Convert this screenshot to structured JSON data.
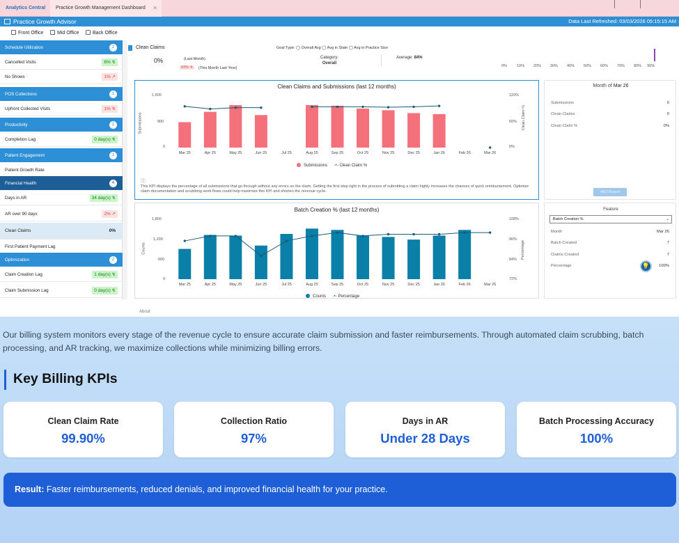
{
  "tabs": [
    {
      "label": "Analytics Central"
    },
    {
      "label": "Practice Growth Management Dashboard"
    }
  ],
  "title_bar": {
    "title": "Practice Growth Advisor",
    "refreshed": "Data Last Refreshed: 03/03/2026 05:15:15 AM"
  },
  "filters": [
    "Front Office",
    "Mid Office",
    "Back Office"
  ],
  "sidebar": {
    "sections": [
      {
        "header": "Schedule Utilization",
        "badge": "2"
      },
      {
        "header": "POS Collections",
        "badge": "1"
      },
      {
        "header": "Productivity",
        "badge": "1"
      },
      {
        "header": "Patient Engagement",
        "badge": "1"
      },
      {
        "header": "Financial Health",
        "badge": "4"
      },
      {
        "header": "Optimization",
        "badge": "2"
      }
    ],
    "rows": [
      {
        "label": "Cancelled Visits",
        "value": "6% ↯"
      },
      {
        "label": "No Shows",
        "value": "1% ↗"
      },
      {
        "label": "Upfront Collected Visits",
        "value": "1% ↯"
      },
      {
        "label": "Completion Lag",
        "value": "0 day(s) ↯"
      },
      {
        "label": "Patient Growth Rate",
        "value": ""
      },
      {
        "label": "Days in AR",
        "value": "34 day(s) ↯"
      },
      {
        "label": "AR over 90 days",
        "value": "2% ↗"
      },
      {
        "label": "Clean Claims",
        "value": "0%"
      },
      {
        "label": "First Patient Payment Lag",
        "value": ""
      },
      {
        "label": "Claim Creation Lag",
        "value": "1 day(s) ↯"
      },
      {
        "label": "Claim Submission Lag",
        "value": "0 day(s) ↯"
      }
    ]
  },
  "kpi_header": {
    "name": "Clean Claims",
    "value": "0%",
    "last_month": "(Last Month)",
    "last_year_value": "93% ↯",
    "last_year_label": "(This Month Last Year)",
    "goal_type_label": "Goal Type:",
    "goal_options": [
      "Overall Avg",
      "Avg in State",
      "Avg in Practice Size"
    ],
    "category_label": "Category:",
    "category_value": "Overall",
    "average_label": "Average:",
    "average_value": "84%",
    "scale": [
      "0%",
      "10%",
      "20%",
      "30%",
      "40%",
      "50%",
      "60%",
      "70%",
      "80%",
      "90%"
    ]
  },
  "chart1_text": {
    "title": "Clean Claims and Submissions (last 12 months)",
    "y_left_label": "Submissions",
    "y_right_label": "Clean Claim %",
    "y_left_ticks": [
      "1,600",
      "800",
      "0"
    ],
    "y_right_ticks": [
      "120%",
      "60%",
      "0%"
    ],
    "legend": [
      "Submissions",
      "Clean Claim %"
    ],
    "info": "This KPI displays the percentage of all submissions that go through without any errors on the claim. Getting the first step right in the process of submitting a claim highly increases the chances of quick reimbursement. Optimize claim documentation and scrubbing work flows could help maximize this KPI and shorten the revenue cycle."
  },
  "chart2_text": {
    "title": "Batch Creation % (last 12 months)",
    "y_left_label": "Counts",
    "y_right_label": "Percentage",
    "y_left_ticks": [
      "1,800",
      "1,200",
      "600",
      "0"
    ],
    "y_right_ticks": [
      "108%",
      "96%",
      "84%",
      "72%"
    ],
    "legend": [
      "Counts",
      "Percentage"
    ]
  },
  "about_label": "About",
  "right_panel1": {
    "title_prefix": "Month of",
    "title_month": "Mar 26",
    "rows": [
      {
        "label": "Submissions",
        "value": "0"
      },
      {
        "label": "Clean Claims",
        "value": "0"
      },
      {
        "label": "Clean Claim %",
        "value": "0%"
      }
    ],
    "button": "eBO Report"
  },
  "right_panel2": {
    "feature_label": "Feature",
    "select_value": "Batch Creation %",
    "rows": [
      {
        "label": "Month",
        "value": "Mar 26"
      },
      {
        "label": "Batch Created",
        "value": "7"
      },
      {
        "label": "Claims Created",
        "value": "7"
      },
      {
        "label": "Percentage",
        "value": "100%"
      }
    ]
  },
  "marketing": {
    "intro": "Our billing system monitors every stage of the revenue cycle to ensure accurate claim submission and faster reimbursements. Through automated claim scrubbing, batch processing, and AR tracking, we maximize collections while minimizing billing errors.",
    "kpi_title": "Key Billing KPIs",
    "cards": [
      {
        "label": "Clean Claim Rate",
        "value": "99.90%"
      },
      {
        "label": "Collection Ratio",
        "value": "97%"
      },
      {
        "label": "Days in AR",
        "value": "Under 28 Days"
      },
      {
        "label": "Batch Processing Accuracy",
        "value": "100%"
      }
    ],
    "result_bold": "Result:",
    "result_text": " Faster reimbursements, reduced denials, and improved financial health for your practice."
  },
  "colors": {
    "primary": "#2d8fd6",
    "bar1": "#f4707a",
    "line": "#1b5a7a",
    "bar2": "#0a7fa8",
    "accent": "#1e5fd7"
  },
  "chart_data": [
    {
      "type": "bar",
      "title": "Clean Claims and Submissions (last 12 months)",
      "categories": [
        "Mar 25",
        "Apr 25",
        "May 25",
        "Jun 25",
        "Jul 25",
        "Aug 25",
        "Sep 25",
        "Oct 25",
        "Nov 25",
        "Dec 25",
        "Jan 26",
        "Feb 26",
        "Mar 26"
      ],
      "series": [
        {
          "name": "Submissions",
          "type": "bar",
          "axis": "left",
          "values": [
            790,
            1110,
            1320,
            1010,
            null,
            1320,
            1300,
            1210,
            1160,
            1070,
            1040,
            null,
            0
          ]
        },
        {
          "name": "Clean Claim %",
          "type": "line",
          "axis": "right",
          "values": [
            96,
            90,
            93,
            93,
            null,
            95,
            95,
            95,
            94,
            95,
            97,
            null,
            0
          ]
        }
      ],
      "ylim_left": [
        0,
        1600
      ],
      "ylim_right": [
        0,
        120
      ],
      "ylabel": "Submissions",
      "y2label": "Clean Claim %"
    },
    {
      "type": "bar",
      "title": "Batch Creation % (last 12 months)",
      "categories": [
        "Mar 25",
        "Apr 25",
        "May 25",
        "Jun 25",
        "Jul 25",
        "Aug 25",
        "Sep 25",
        "Oct 25",
        "Nov 25",
        "Dec 25",
        "Jan 26",
        "Feb 26",
        "Mar 26"
      ],
      "series": [
        {
          "name": "Counts",
          "type": "bar",
          "axis": "left",
          "values": [
            910,
            1330,
            1310,
            1010,
            1360,
            1520,
            1480,
            1320,
            1270,
            1190,
            1310,
            1480,
            null
          ]
        },
        {
          "name": "Percentage",
          "type": "line",
          "axis": "right",
          "values": [
            95,
            98,
            98,
            86,
            95,
            98,
            100,
            98,
            99,
            99,
            99,
            100,
            100
          ]
        }
      ],
      "ylim_left": [
        0,
        1800
      ],
      "ylim_right": [
        72,
        108
      ],
      "ylabel": "Counts",
      "y2label": "Percentage"
    }
  ]
}
